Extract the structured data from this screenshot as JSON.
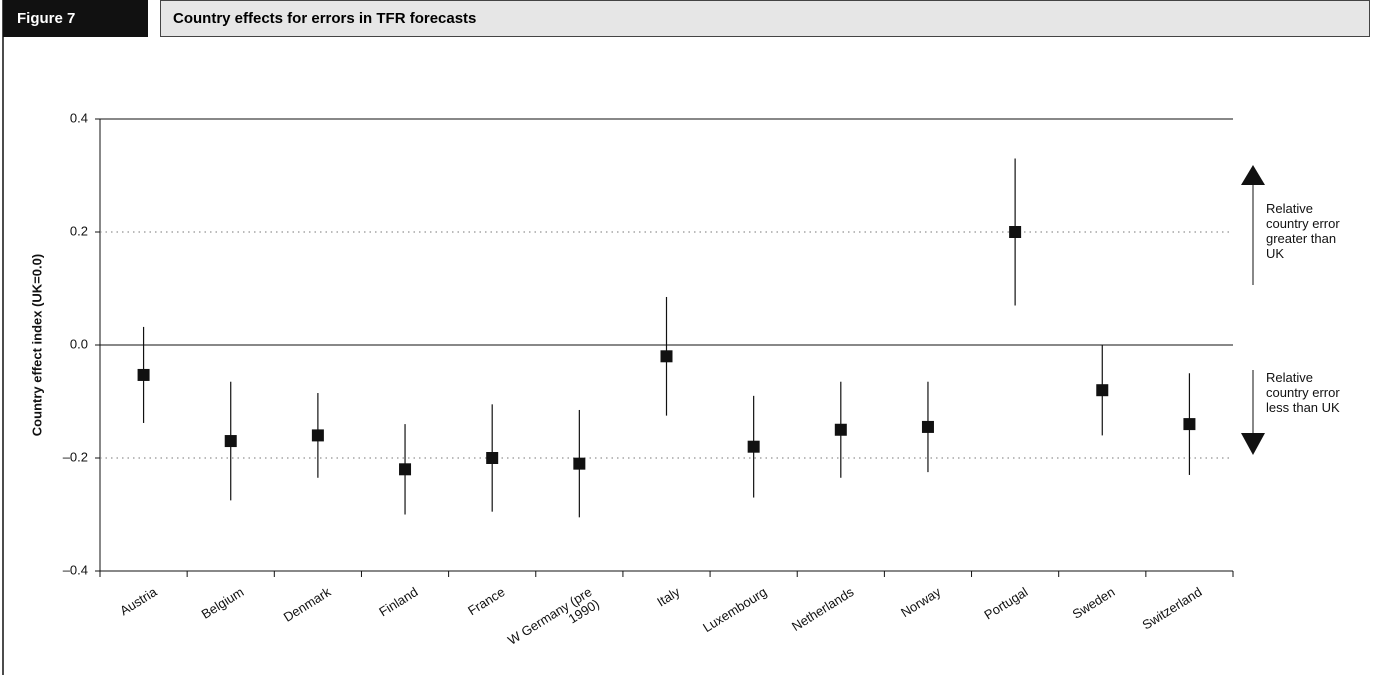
{
  "header": {
    "figure": "Figure 7"
  },
  "chart_data": {
    "type": "errorbar",
    "title": "Country effects for errors in TFR forecasts",
    "y_label": "Country effect index (UK=0.0)",
    "categories": [
      "Austria",
      "Belgium",
      "Denmark",
      "Finland",
      "France",
      "W Germany (pre 1990)",
      "Italy",
      "Luxembourg",
      "Netherlands",
      "Norway",
      "Portugal",
      "Sweden",
      "Switzerland"
    ],
    "values": [
      -0.053,
      -0.17,
      -0.16,
      -0.22,
      -0.2,
      -0.21,
      -0.02,
      -0.18,
      -0.15,
      -0.145,
      0.2,
      -0.08,
      -0.14
    ],
    "errors": [
      0.085,
      0.105,
      0.075,
      0.08,
      0.095,
      0.095,
      0.105,
      0.09,
      0.085,
      0.08,
      0.13,
      0.08,
      0.09
    ],
    "color": "#111111",
    "ylim": [
      -0.4,
      0.4
    ],
    "yticks": [
      {
        "value": -0.4,
        "label": "–0.4"
      },
      {
        "value": -0.2,
        "label": "–0.2"
      },
      {
        "value": 0,
        "label": "0.0"
      },
      0.2,
      0.4
    ],
    "annotations": [
      "Relative country error greater than UK",
      "Relative country error less than UK"
    ]
  }
}
